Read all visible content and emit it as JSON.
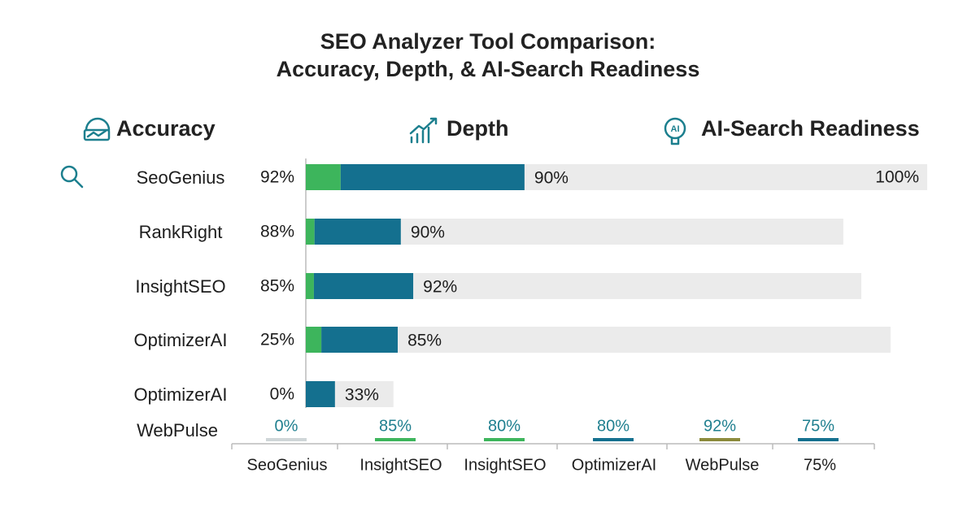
{
  "chart_data": {
    "type": "bar",
    "orientation": "horizontal",
    "stacked": true,
    "title_lines": [
      "SEO Analyzer Tool Comparison:",
      "Accuracy, Depth, & AI-Search Readiness"
    ],
    "categories": [
      "SeoGenius",
      "RankRight",
      "InsightSEO",
      "OptimizerAI",
      "OptimizerAI"
    ],
    "series": [
      {
        "name": "Accuracy",
        "color": "#3db55c",
        "values": [
          5.6,
          1.4,
          1.3,
          2.5,
          0
        ]
      },
      {
        "name": "Depth",
        "color": "#14708f",
        "values": [
          29.6,
          13.9,
          16.0,
          12.3,
          4.7
        ]
      },
      {
        "name": "AI-Search Readiness",
        "color": "#ebebeb",
        "values": [
          64.8,
          71.2,
          72.1,
          79.3,
          9.4
        ]
      }
    ],
    "xlim": [
      0,
      100
    ],
    "accuracy_labels": [
      "92%",
      "88%",
      "85%",
      "25%",
      "0%"
    ],
    "depth_labels": [
      "90%",
      "90%",
      "92%",
      "85%",
      "33%"
    ],
    "readiness_label": "100%",
    "footer": {
      "category": "WebPulse",
      "labels": [
        "0%",
        "85%",
        "80%",
        "80%",
        "92%",
        "75%"
      ],
      "colors": [
        "#cfd6d8",
        "#3db55c",
        "#3db55c",
        "#14708f",
        "#8b8a3c",
        "#14708f"
      ],
      "axis_labels": [
        "SeoGenius",
        "InsightSEO",
        "InsightSEO",
        "OptimizerAI",
        "WebPulse",
        "75%"
      ]
    }
  }
}
